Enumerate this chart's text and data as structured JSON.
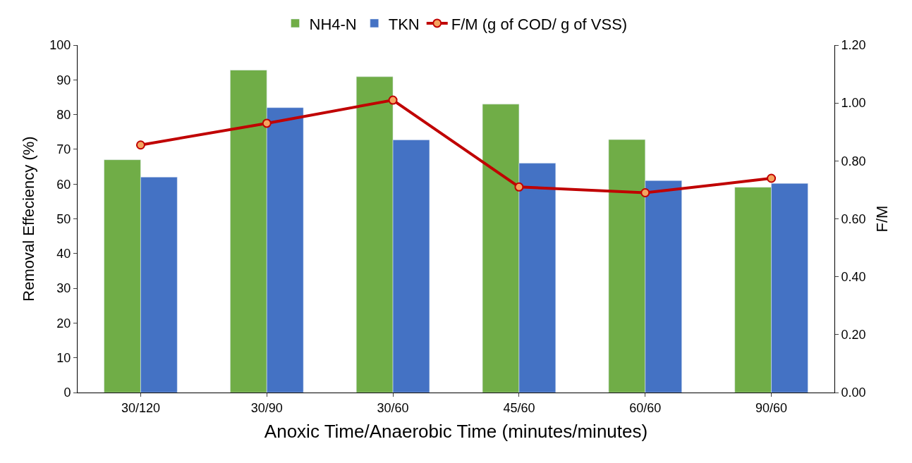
{
  "chart_data": {
    "type": "bar",
    "xlabel": "Anoxic Time/Anaerobic Time (minutes/minutes)",
    "ylabel": "Removal Effeciency (%)",
    "y2label": "F/M",
    "categories": [
      "30/120",
      "30/90",
      "30/60",
      "45/60",
      "60/60",
      "90/60"
    ],
    "series": [
      {
        "name": "NH4-N",
        "color": "#70ad47",
        "values": [
          67,
          92.8,
          90.9,
          83,
          72.8,
          59.1
        ]
      },
      {
        "name": "TKN",
        "color": "#4472c4",
        "values": [
          62,
          82,
          72.7,
          66,
          61,
          60.2
        ]
      },
      {
        "name": "F/M (g of COD/ g of VSS)",
        "type": "line",
        "axis": "y2",
        "color": "#c00000",
        "marker": "circle",
        "line_style": "solid",
        "values": [
          0.855,
          0.93,
          1.01,
          0.71,
          0.69,
          0.74
        ]
      }
    ],
    "ylim": [
      0,
      100
    ],
    "yticks": [
      0,
      10,
      20,
      30,
      40,
      50,
      60,
      70,
      80,
      90,
      100
    ],
    "y2lim": [
      0,
      1.2
    ],
    "y2ticks": [
      {
        "value": 0,
        "label": "0.00"
      },
      {
        "value": 0.2,
        "label": "0.20"
      },
      {
        "value": 0.4,
        "label": "0.40"
      },
      {
        "value": 0.6,
        "label": "0.60"
      },
      {
        "value": 0.8,
        "label": "0.80"
      },
      {
        "value": 1.0,
        "label": "1.00"
      },
      {
        "value": 1.2,
        "label": "1.20"
      }
    ],
    "legend": "top"
  }
}
